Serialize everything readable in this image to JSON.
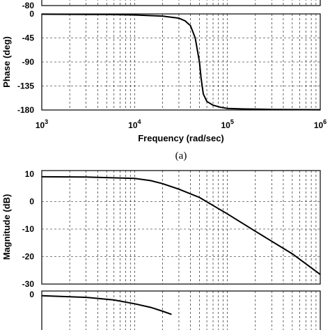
{
  "chart_data": [
    {
      "type": "line",
      "panel": "top-magnitude (cropped)",
      "yticks": [
        "-80"
      ],
      "series": []
    },
    {
      "type": "line",
      "panel": "top-phase",
      "ylabel": "Phase (deg)",
      "xlabel": "Frequency (rad/sec)",
      "caption": "(a)",
      "xscale": "log",
      "xlim": [
        1000,
        1000000
      ],
      "ylim": [
        -180,
        0
      ],
      "yticks": [
        "0",
        "-45",
        "-90",
        "-135",
        "-180"
      ],
      "yvals": [
        0,
        -45,
        -90,
        -135,
        -180
      ],
      "xticks": [
        {
          "base": "10",
          "exp": "3",
          "value": 1000
        },
        {
          "base": "10",
          "exp": "4",
          "value": 10000
        },
        {
          "base": "10",
          "exp": "5",
          "value": 100000
        },
        {
          "base": "10",
          "exp": "6",
          "value": 1000000
        }
      ],
      "grid": true,
      "series": [
        {
          "x": [
            1000,
            5000,
            10000,
            20000,
            30000,
            35000,
            40000,
            45000,
            50000,
            52000,
            55000,
            60000,
            70000,
            85000,
            100000,
            150000,
            300000,
            1000000
          ],
          "y": [
            -0.5,
            -1,
            -2,
            -4,
            -8,
            -13,
            -22,
            -45,
            -90,
            -120,
            -150,
            -164,
            -171,
            -175,
            -177,
            -178,
            -179,
            -179.5
          ]
        }
      ]
    },
    {
      "type": "line",
      "panel": "bottom-magnitude",
      "ylabel": "Magnitude (dB)",
      "xscale": "log",
      "xlim": [
        1000,
        1000000
      ],
      "ylim": [
        -30,
        10
      ],
      "yticks": [
        "10",
        "0",
        "-10",
        "-20",
        "-30"
      ],
      "yvals": [
        10,
        0,
        -10,
        -20,
        -30
      ],
      "grid": true,
      "series": [
        {
          "x": [
            1000,
            3000,
            10000,
            15000,
            20000,
            30000,
            50000,
            100000,
            200000,
            500000,
            1000000
          ],
          "y": [
            9,
            8.9,
            8.4,
            7.6,
            6.5,
            4.5,
            1.5,
            -4.5,
            -10.8,
            -19,
            -26.5
          ]
        }
      ]
    },
    {
      "type": "line",
      "panel": "bottom-phase (cropped)",
      "yticks": [
        "0"
      ],
      "series": [
        {
          "x": [
            1000,
            3000,
            6000,
            10000,
            15000,
            20000,
            25000
          ],
          "y": [
            -1,
            -4,
            -9,
            -16,
            -23,
            -30,
            -36
          ]
        }
      ]
    }
  ]
}
